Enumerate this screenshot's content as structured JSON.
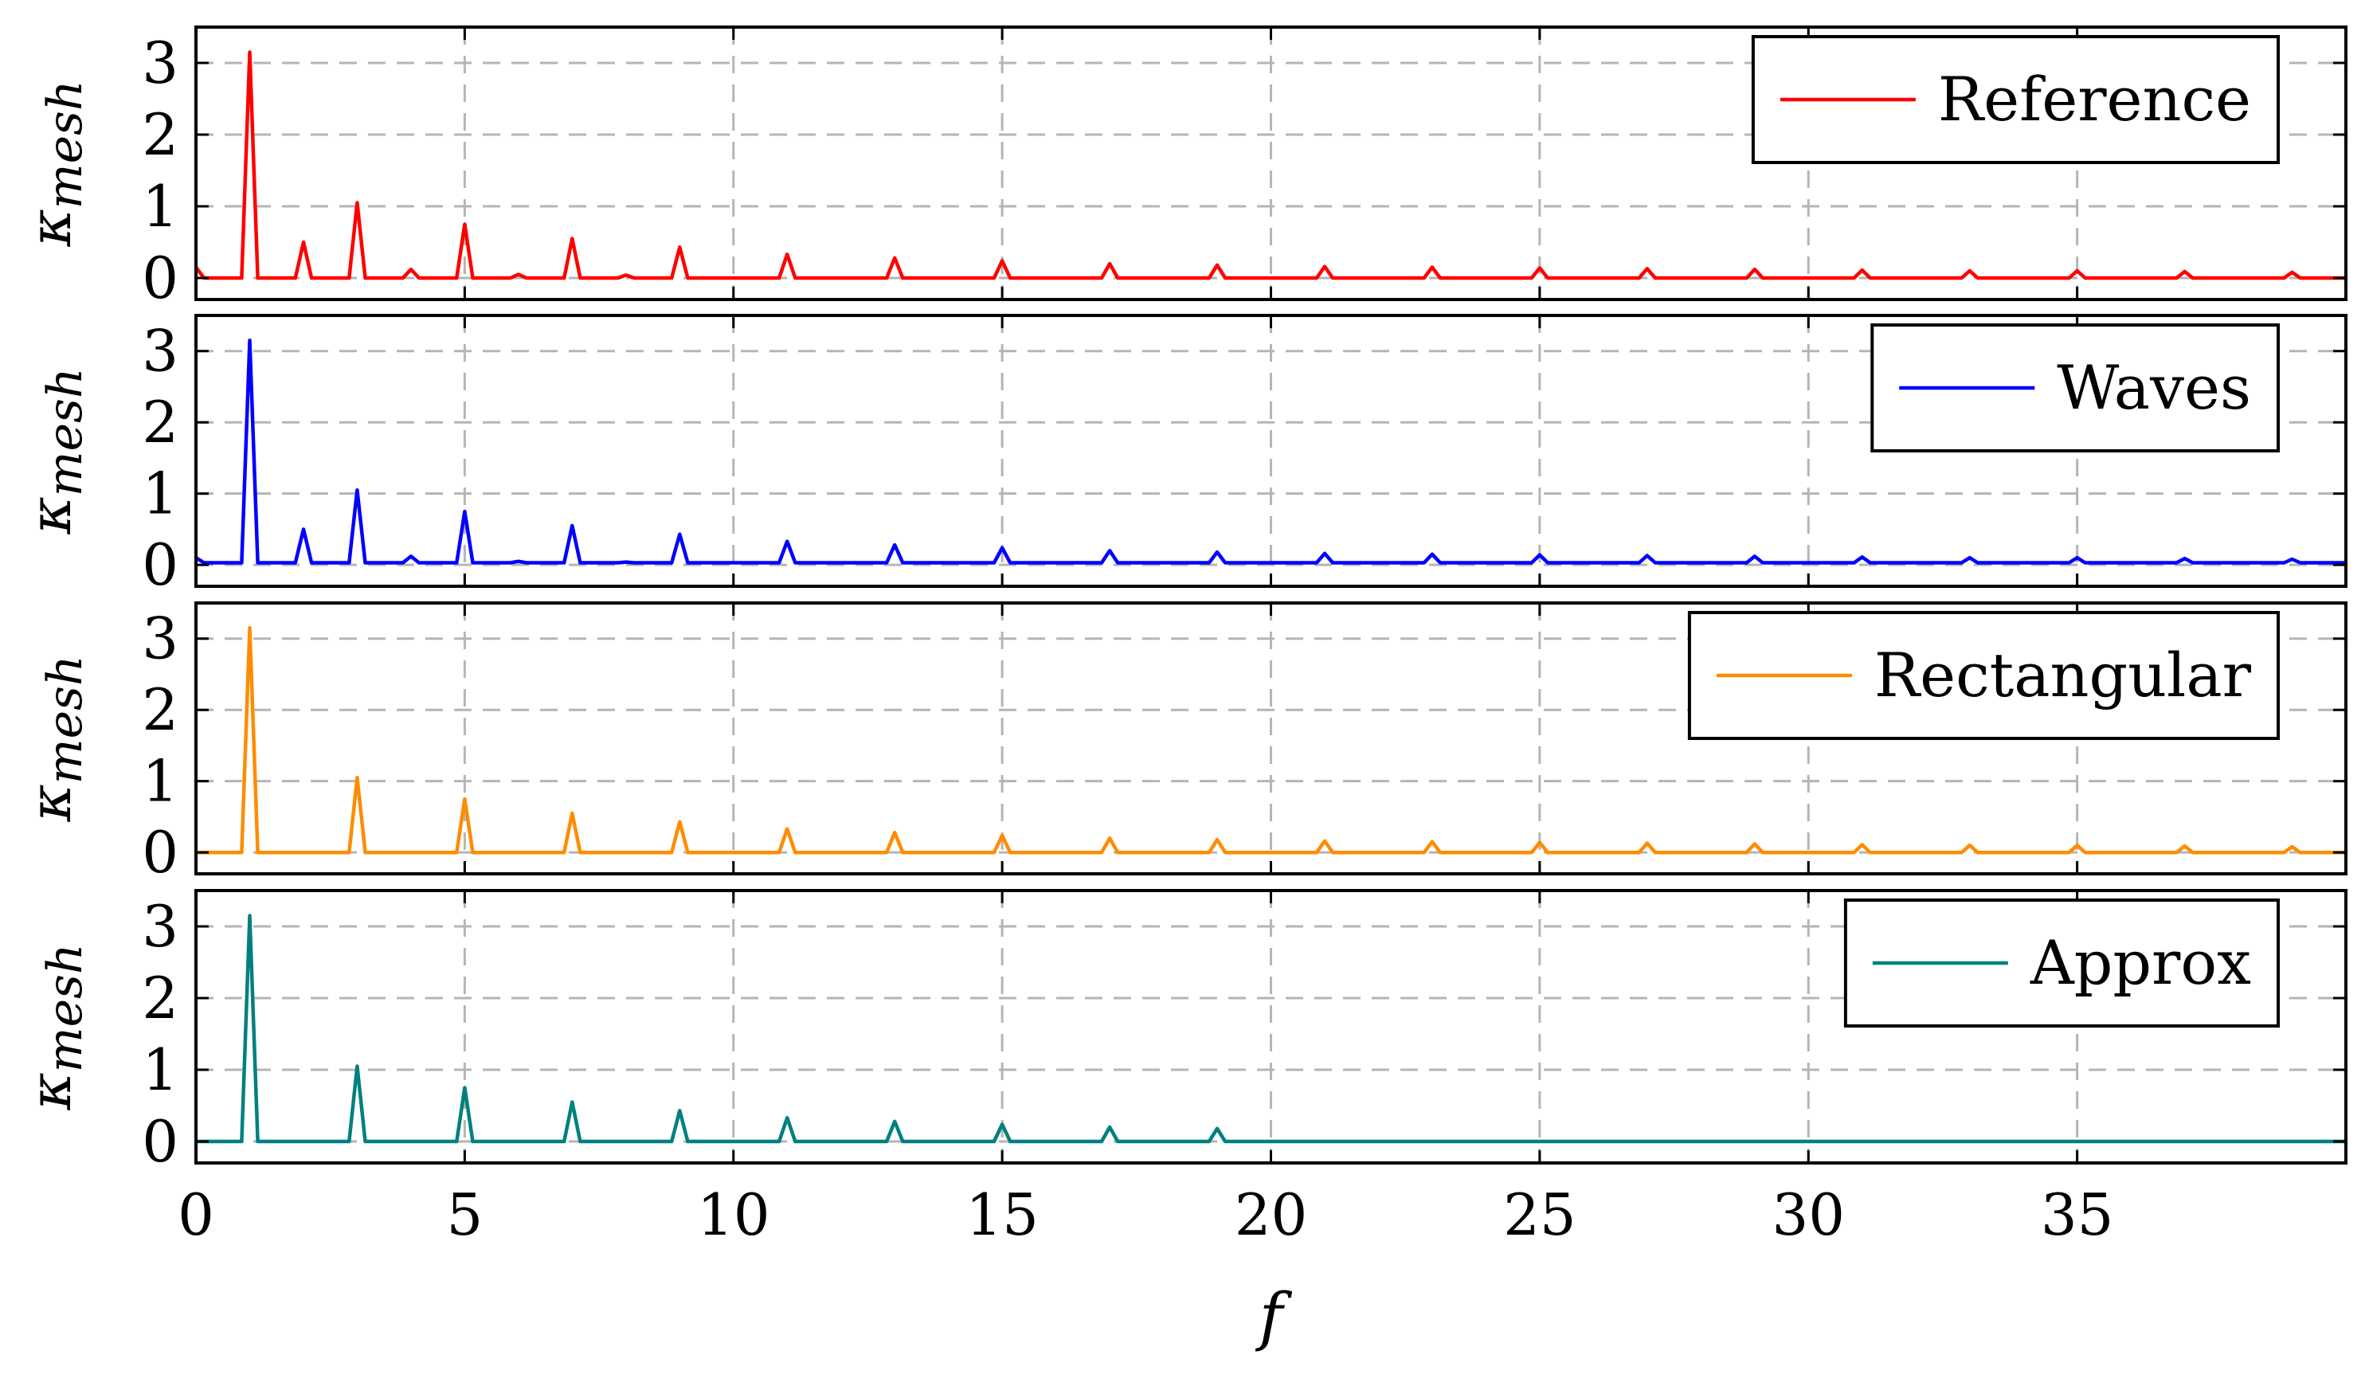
{
  "chart_data": {
    "type": "line",
    "xlabel": "f",
    "xlim": [
      0,
      40
    ],
    "x_ticks": [
      0,
      5,
      10,
      15,
      20,
      25,
      30,
      35
    ],
    "y_ticks": [
      0,
      1,
      2,
      3
    ],
    "grid": "dashed",
    "legend_position": "top-right",
    "panels": [
      {
        "ylabel_main": "κ",
        "ylabel_sub": "mesh",
        "ylim": [
          -0.3,
          3.5
        ],
        "legend": "Reference",
        "color": "#ff0000",
        "baseline": 0.0,
        "start_value": 0.15,
        "peaks": [
          [
            1,
            3.15
          ],
          [
            2,
            0.5
          ],
          [
            3,
            1.05
          ],
          [
            4,
            0.12
          ],
          [
            5,
            0.75
          ],
          [
            6,
            0.05
          ],
          [
            7,
            0.55
          ],
          [
            8,
            0.04
          ],
          [
            9,
            0.43
          ],
          [
            11,
            0.33
          ],
          [
            13,
            0.28
          ],
          [
            15,
            0.24
          ],
          [
            17,
            0.2
          ],
          [
            19,
            0.18
          ],
          [
            21,
            0.16
          ],
          [
            23,
            0.15
          ],
          [
            25,
            0.14
          ],
          [
            27,
            0.13
          ],
          [
            29,
            0.12
          ],
          [
            31,
            0.11
          ],
          [
            33,
            0.1
          ],
          [
            35,
            0.1
          ],
          [
            37,
            0.09
          ],
          [
            39,
            0.08
          ]
        ]
      },
      {
        "ylabel_main": "κ",
        "ylabel_sub": "mesh",
        "ylim": [
          -0.3,
          3.5
        ],
        "legend": "Waves",
        "color": "#0000ff",
        "baseline": 0.03,
        "start_value": 0.1,
        "peaks": [
          [
            1,
            3.15
          ],
          [
            2,
            0.5
          ],
          [
            3,
            1.05
          ],
          [
            4,
            0.12
          ],
          [
            5,
            0.75
          ],
          [
            6,
            0.05
          ],
          [
            7,
            0.55
          ],
          [
            8,
            0.04
          ],
          [
            9,
            0.43
          ],
          [
            11,
            0.33
          ],
          [
            13,
            0.28
          ],
          [
            15,
            0.24
          ],
          [
            17,
            0.2
          ],
          [
            19,
            0.18
          ],
          [
            21,
            0.16
          ],
          [
            23,
            0.15
          ],
          [
            25,
            0.14
          ],
          [
            27,
            0.13
          ],
          [
            29,
            0.12
          ],
          [
            31,
            0.11
          ],
          [
            33,
            0.1
          ],
          [
            35,
            0.1
          ],
          [
            37,
            0.09
          ],
          [
            39,
            0.08
          ]
        ]
      },
      {
        "ylabel_main": "κ",
        "ylabel_sub": "mesh",
        "ylim": [
          -0.3,
          3.5
        ],
        "legend": "Rectangular",
        "color": "#ff8c00",
        "baseline": 0.0,
        "start_value": 0.0,
        "peaks": [
          [
            1,
            3.15
          ],
          [
            3,
            1.05
          ],
          [
            5,
            0.75
          ],
          [
            7,
            0.55
          ],
          [
            9,
            0.43
          ],
          [
            11,
            0.33
          ],
          [
            13,
            0.28
          ],
          [
            15,
            0.24
          ],
          [
            17,
            0.2
          ],
          [
            19,
            0.18
          ],
          [
            21,
            0.16
          ],
          [
            23,
            0.15
          ],
          [
            25,
            0.14
          ],
          [
            27,
            0.13
          ],
          [
            29,
            0.12
          ],
          [
            31,
            0.11
          ],
          [
            33,
            0.1
          ],
          [
            35,
            0.1
          ],
          [
            37,
            0.09
          ],
          [
            39,
            0.08
          ]
        ]
      },
      {
        "ylabel_main": "κ",
        "ylabel_sub": "mesh",
        "ylim": [
          -0.3,
          3.5
        ],
        "legend": "Approx",
        "color": "#008080",
        "baseline": 0.0,
        "start_value": 0.0,
        "peaks": [
          [
            1,
            3.15
          ],
          [
            3,
            1.05
          ],
          [
            5,
            0.75
          ],
          [
            7,
            0.55
          ],
          [
            9,
            0.43
          ],
          [
            11,
            0.33
          ],
          [
            13,
            0.28
          ],
          [
            15,
            0.24
          ],
          [
            17,
            0.2
          ],
          [
            19,
            0.18
          ]
        ]
      }
    ]
  }
}
